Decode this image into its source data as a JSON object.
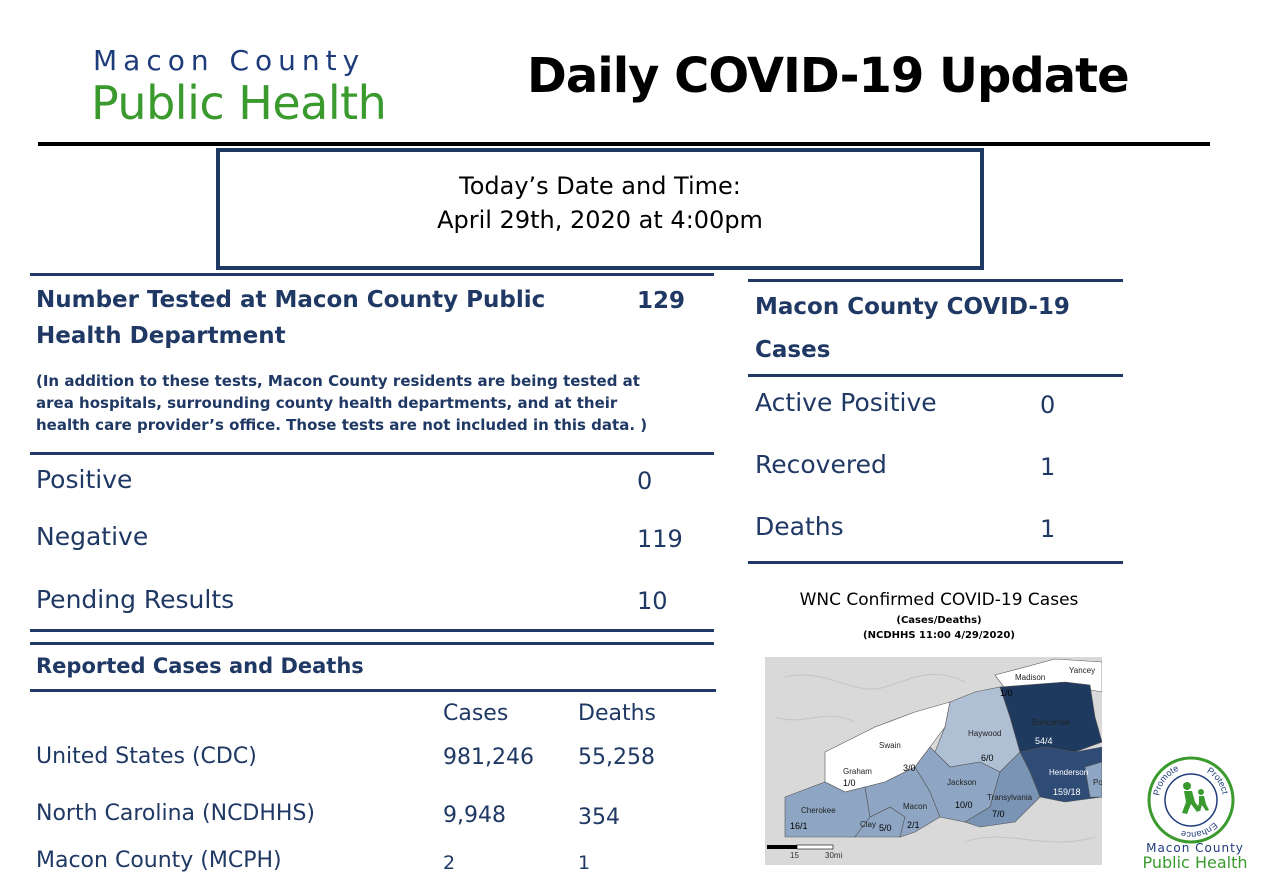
{
  "header": {
    "logo_line1": "Macon County",
    "logo_line2": "Public Health",
    "title": "Daily COVID-19 Update"
  },
  "date_box": {
    "label": "Today’s Date and Time:",
    "value": "April 29th, 2020 at 4:00pm"
  },
  "tested": {
    "heading_line1": "Number Tested at Macon County Public",
    "heading_line2": "Health Department",
    "total": "129",
    "note_line1": "(In addition to these tests, Macon County residents are being tested at",
    "note_line2": "area hospitals, surrounding county health departments, and at their",
    "note_line3": "health care provider’s office. Those tests are not included in this data. )",
    "rows": [
      {
        "label": "Positive",
        "value": "0"
      },
      {
        "label": "Negative",
        "value": "119"
      },
      {
        "label": "Pending Results",
        "value": "10"
      }
    ]
  },
  "cases_box": {
    "heading_line1": "Macon County COVID-19",
    "heading_line2": "Cases",
    "rows": [
      {
        "label": "Active Positive",
        "value": "0"
      },
      {
        "label": "Recovered",
        "value": "1"
      },
      {
        "label": "Deaths",
        "value": "1"
      }
    ]
  },
  "reported": {
    "heading": "Reported Cases and Deaths",
    "col_cases": "Cases",
    "col_deaths": "Deaths",
    "rows": [
      {
        "label": "United States (CDC)",
        "cases": "981,246",
        "deaths": "55,258"
      },
      {
        "label": "North Carolina (NCDHHS)",
        "cases": "9,948",
        "deaths": "354"
      },
      {
        "label": "Macon County (MCPH)",
        "cases": "2",
        "deaths": "1"
      }
    ]
  },
  "map": {
    "title": "WNC Confirmed COVID-19 Cases",
    "subtitle1": "(Cases/Deaths)",
    "subtitle2": "(NCDHHS 11:00 4/29/2020)",
    "counties": {
      "madison": "Madison",
      "madison_val": "1/0",
      "yancey": "Yancey",
      "buncombe": "Buncombe",
      "buncombe_val": "54/4",
      "haywood": "Haywood",
      "haywood_val": "6/0",
      "swain": "Swain",
      "swain_val": "3/0",
      "graham": "Graham",
      "graham_val": "1/0",
      "jackson": "Jackson",
      "jackson_val": "10/0",
      "henderson": "Henderson",
      "henderson_val": "159/18",
      "transylvania": "Transylvania",
      "transylvania_val": "7/0",
      "cherokee": "Cherokee",
      "cherokee_val": "16/1",
      "macon": "Macon",
      "macon_val": "2/1",
      "clay": "Clay",
      "clay_val": "5/0",
      "polk": "Po"
    },
    "scale_a": "15",
    "scale_b": "30mi"
  },
  "seal": {
    "ring_promote": "Promote",
    "ring_protect": "Protect",
    "ring_enhance": "Enhance",
    "footer_line1": "Macon County",
    "footer_line2": "Public Health"
  },
  "colors": {
    "navy": "#1f3864",
    "green": "#3a9a2e"
  }
}
